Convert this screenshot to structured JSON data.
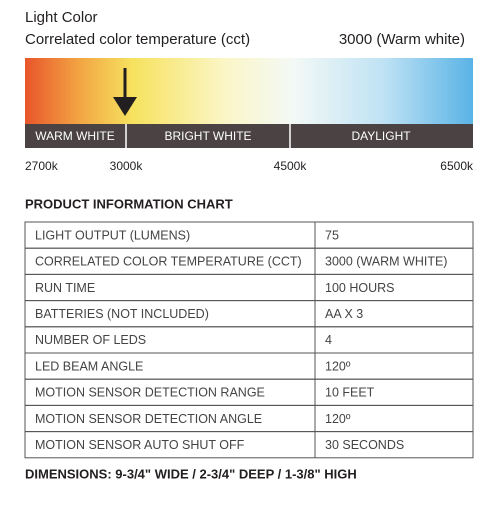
{
  "header": {
    "title": "Light Color",
    "subtitle": "Correlated color temperature (cct)",
    "selected": "3000 (Warm white)"
  },
  "scale": {
    "bands": [
      "WARM WHITE",
      "BRIGHT WHITE",
      "DAYLIGHT"
    ],
    "ticks": [
      "2700k",
      "3000k",
      "4500k",
      "6500k"
    ]
  },
  "table": {
    "title": "PRODUCT INFORMATION CHART",
    "rows": [
      [
        "LIGHT OUTPUT (LUMENS)",
        "75"
      ],
      [
        "CORRELATED COLOR TEMPERATURE (CCT)",
        "3000 (WARM WHITE)"
      ],
      [
        "RUN TIME",
        "100 HOURS"
      ],
      [
        "BATTERIES (NOT INCLUDED)",
        "AA X 3"
      ],
      [
        "NUMBER OF LEDS",
        "4"
      ],
      [
        "LED BEAM ANGLE",
        "120º"
      ],
      [
        "MOTION SENSOR DETECTION RANGE",
        "10 FEET"
      ],
      [
        "MOTION SENSOR DETECTION ANGLE",
        "120º"
      ],
      [
        "MOTION SENSOR AUTO SHUT OFF",
        "30 SECONDS"
      ]
    ]
  },
  "footer": "DIMENSIONS: 9-3/4\" WIDE / 2-3/4\" DEEP / 1-3/8\" HIGH"
}
